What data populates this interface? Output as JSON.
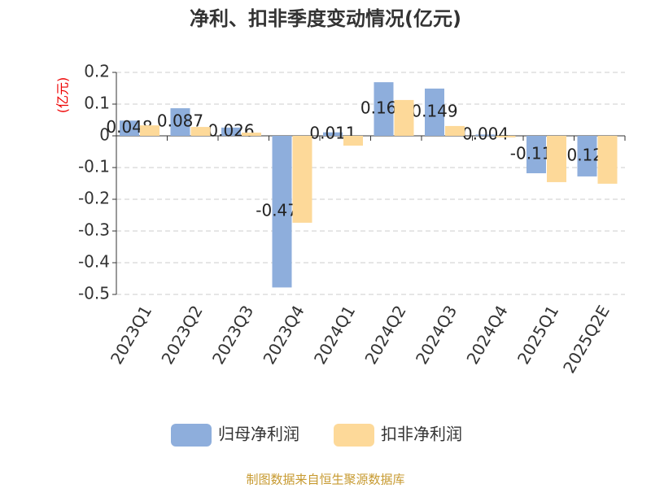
{
  "chart_data": {
    "type": "bar",
    "title": "净利、扣非季度变动情况(亿元)",
    "y_label": "(亿元)",
    "categories": [
      "2023Q1",
      "2023Q2",
      "2023Q3",
      "2023Q4",
      "2024Q1",
      "2024Q2",
      "2024Q3",
      "2024Q4",
      "2025Q1",
      "2025Q2E"
    ],
    "series": [
      {
        "name": "归母净利润",
        "color": "#8eaedc",
        "values": [
          0.048,
          0.087,
          0.026,
          -0.478,
          0.011,
          0.169,
          0.149,
          0.004,
          -0.118,
          -0.128
        ]
      },
      {
        "name": "扣非净利润",
        "color": "#fdd999",
        "values": [
          0.033,
          0.028,
          0.01,
          -0.274,
          -0.031,
          0.113,
          0.031,
          -0.005,
          -0.146,
          -0.151
        ]
      }
    ],
    "ylim": [
      -0.5,
      0.2
    ],
    "yticks": [
      0.2,
      0.1,
      0,
      -0.1,
      -0.2,
      -0.3,
      -0.4,
      -0.5
    ],
    "grid": true,
    "source": "制图数据来自恒生聚源数据库"
  }
}
